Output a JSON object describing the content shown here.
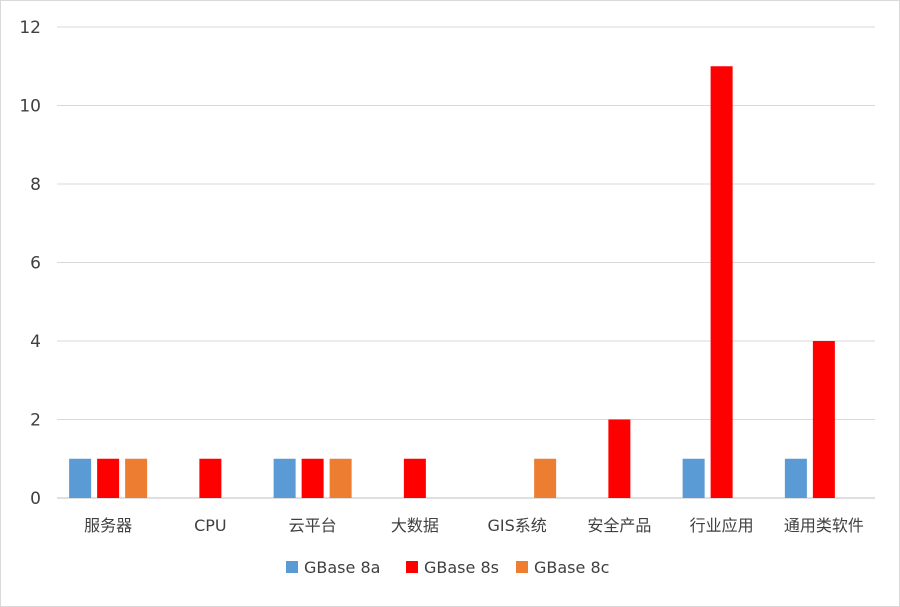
{
  "chart_data": {
    "type": "bar",
    "title": "",
    "xlabel": "",
    "ylabel": "",
    "categories": [
      "服务器",
      "CPU",
      "云平台",
      "大数据",
      "GIS系统",
      "安全产品",
      "行业应用",
      "通用类软件"
    ],
    "series": [
      {
        "name": "GBase 8a",
        "color": "#5b9bd5",
        "values": [
          1,
          null,
          1,
          null,
          null,
          null,
          1,
          1
        ]
      },
      {
        "name": "GBase 8s",
        "color": "#ff0000",
        "values": [
          1,
          1,
          1,
          1,
          null,
          2,
          11,
          4
        ]
      },
      {
        "name": "GBase 8c",
        "color": "#ed7d31",
        "values": [
          1,
          null,
          1,
          null,
          1,
          null,
          null,
          null
        ]
      }
    ],
    "ylim": [
      0,
      12
    ],
    "yticks": [
      0,
      2,
      4,
      6,
      8,
      10,
      12
    ],
    "grid": true,
    "legend_position": "bottom"
  }
}
